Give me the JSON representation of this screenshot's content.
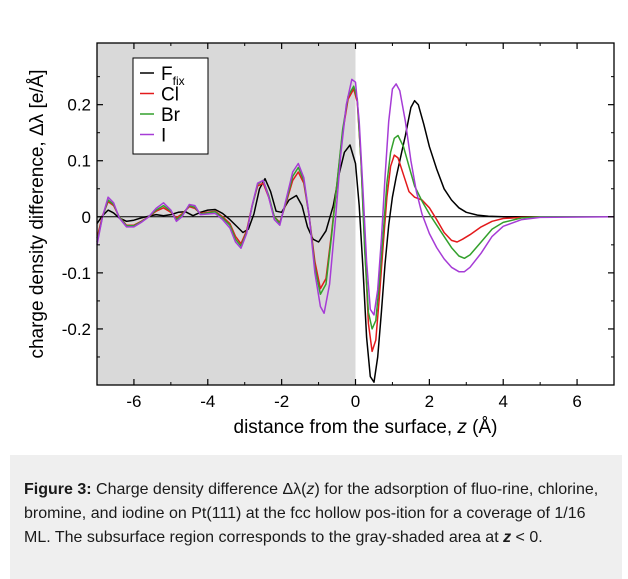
{
  "chart_data": {
    "type": "line",
    "xlabel_prefix": "distance from the surface, ",
    "xlabel_var": "z",
    "xlabel_unit": " (Å)",
    "ylabel": "charge density difference,  Δλ  [e/Å]",
    "xlim": [
      -7,
      7
    ],
    "ylim": [
      -0.3,
      0.31
    ],
    "xticks": [
      -6,
      -4,
      -2,
      0,
      2,
      4,
      6
    ],
    "yticks": [
      0.2,
      0.1,
      0,
      -0.1,
      -0.2
    ],
    "xtick_labels": [
      "-6",
      "-4",
      "-2",
      "0",
      "2",
      "4",
      "6"
    ],
    "ytick_labels": [
      "0.2",
      "0.1",
      "0",
      "-0.1",
      "-0.2"
    ],
    "shaded_region": [
      -7,
      0
    ],
    "shaded_color": "#d9d9d9",
    "zero_line": true,
    "grid": false,
    "legend_position": "top-left",
    "series": [
      {
        "name": "F",
        "subscript": "fix",
        "color": "#000000",
        "points": [
          [
            -7.0,
            -0.012
          ],
          [
            -6.85,
            0.002
          ],
          [
            -6.7,
            0.012
          ],
          [
            -6.55,
            0.007
          ],
          [
            -6.4,
            -0.002
          ],
          [
            -6.2,
            -0.008
          ],
          [
            -6.0,
            -0.006
          ],
          [
            -5.8,
            -0.002
          ],
          [
            -5.6,
            0.001
          ],
          [
            -5.4,
            0.004
          ],
          [
            -5.2,
            0.002
          ],
          [
            -5.0,
            0.004
          ],
          [
            -4.8,
            0.008
          ],
          [
            -4.6,
            0.009
          ],
          [
            -4.4,
            0.002
          ],
          [
            -4.2,
            0.008
          ],
          [
            -4.0,
            0.012
          ],
          [
            -3.8,
            0.013
          ],
          [
            -3.6,
            0.006
          ],
          [
            -3.4,
            -0.005
          ],
          [
            -3.2,
            -0.018
          ],
          [
            -3.05,
            -0.028
          ],
          [
            -2.9,
            -0.022
          ],
          [
            -2.75,
            0.005
          ],
          [
            -2.6,
            0.05
          ],
          [
            -2.45,
            0.068
          ],
          [
            -2.3,
            0.045
          ],
          [
            -2.15,
            0.01
          ],
          [
            -2.0,
            0.008
          ],
          [
            -1.8,
            0.03
          ],
          [
            -1.6,
            0.038
          ],
          [
            -1.45,
            0.02
          ],
          [
            -1.3,
            -0.018
          ],
          [
            -1.15,
            -0.04
          ],
          [
            -1.0,
            -0.045
          ],
          [
            -0.8,
            -0.025
          ],
          [
            -0.6,
            0.02
          ],
          [
            -0.45,
            0.075
          ],
          [
            -0.3,
            0.115
          ],
          [
            -0.15,
            0.128
          ],
          [
            0.0,
            0.095
          ],
          [
            0.1,
            0.02
          ],
          [
            0.2,
            -0.09
          ],
          [
            0.3,
            -0.215
          ],
          [
            0.4,
            -0.285
          ],
          [
            0.5,
            -0.295
          ],
          [
            0.6,
            -0.25
          ],
          [
            0.7,
            -0.17
          ],
          [
            0.8,
            -0.085
          ],
          [
            0.9,
            -0.015
          ],
          [
            1.0,
            0.035
          ],
          [
            1.1,
            0.07
          ],
          [
            1.2,
            0.1
          ],
          [
            1.35,
            0.145
          ],
          [
            1.5,
            0.195
          ],
          [
            1.6,
            0.207
          ],
          [
            1.7,
            0.2
          ],
          [
            1.85,
            0.165
          ],
          [
            2.0,
            0.125
          ],
          [
            2.2,
            0.085
          ],
          [
            2.4,
            0.05
          ],
          [
            2.6,
            0.03
          ],
          [
            2.8,
            0.016
          ],
          [
            3.0,
            0.008
          ],
          [
            3.3,
            0.003
          ],
          [
            3.6,
            0.001
          ],
          [
            4.0,
            0.0
          ],
          [
            5.0,
            0.0
          ],
          [
            7.0,
            0.0
          ]
        ]
      },
      {
        "name": "Cl",
        "color": "#e31a1c",
        "points": [
          [
            -7.0,
            -0.038
          ],
          [
            -6.85,
            0.002
          ],
          [
            -6.7,
            0.027
          ],
          [
            -6.55,
            0.02
          ],
          [
            -6.4,
            0.0
          ],
          [
            -6.2,
            -0.015
          ],
          [
            -6.0,
            -0.015
          ],
          [
            -5.8,
            -0.008
          ],
          [
            -5.6,
            0.0
          ],
          [
            -5.4,
            0.01
          ],
          [
            -5.2,
            0.016
          ],
          [
            -5.0,
            0.008
          ],
          [
            -4.85,
            -0.002
          ],
          [
            -4.7,
            0.005
          ],
          [
            -4.5,
            0.018
          ],
          [
            -4.35,
            0.015
          ],
          [
            -4.2,
            0.006
          ],
          [
            -4.0,
            0.008
          ],
          [
            -3.8,
            0.01
          ],
          [
            -3.6,
            0.0
          ],
          [
            -3.4,
            -0.012
          ],
          [
            -3.25,
            -0.035
          ],
          [
            -3.1,
            -0.048
          ],
          [
            -2.95,
            -0.025
          ],
          [
            -2.8,
            0.02
          ],
          [
            -2.65,
            0.055
          ],
          [
            -2.5,
            0.06
          ],
          [
            -2.35,
            0.035
          ],
          [
            -2.2,
            0.0
          ],
          [
            -2.05,
            -0.01
          ],
          [
            -1.9,
            0.02
          ],
          [
            -1.7,
            0.065
          ],
          [
            -1.55,
            0.08
          ],
          [
            -1.4,
            0.06
          ],
          [
            -1.25,
            0.0
          ],
          [
            -1.1,
            -0.08
          ],
          [
            -0.95,
            -0.128
          ],
          [
            -0.8,
            -0.11
          ],
          [
            -0.65,
            -0.03
          ],
          [
            -0.5,
            0.06
          ],
          [
            -0.35,
            0.15
          ],
          [
            -0.2,
            0.21
          ],
          [
            -0.05,
            0.228
          ],
          [
            0.05,
            0.205
          ],
          [
            0.15,
            0.1
          ],
          [
            0.25,
            -0.05
          ],
          [
            0.35,
            -0.19
          ],
          [
            0.45,
            -0.24
          ],
          [
            0.55,
            -0.22
          ],
          [
            0.65,
            -0.14
          ],
          [
            0.75,
            -0.05
          ],
          [
            0.85,
            0.035
          ],
          [
            0.95,
            0.09
          ],
          [
            1.05,
            0.11
          ],
          [
            1.15,
            0.105
          ],
          [
            1.3,
            0.075
          ],
          [
            1.45,
            0.045
          ],
          [
            1.6,
            0.035
          ],
          [
            1.8,
            0.03
          ],
          [
            2.0,
            0.016
          ],
          [
            2.2,
            -0.005
          ],
          [
            2.4,
            -0.028
          ],
          [
            2.6,
            -0.042
          ],
          [
            2.75,
            -0.045
          ],
          [
            2.9,
            -0.04
          ],
          [
            3.1,
            -0.032
          ],
          [
            3.4,
            -0.018
          ],
          [
            3.7,
            -0.008
          ],
          [
            4.0,
            -0.003
          ],
          [
            4.5,
            -0.001
          ],
          [
            5.0,
            0.0
          ],
          [
            7.0,
            0.0
          ]
        ]
      },
      {
        "name": "Br",
        "color": "#33a02c",
        "points": [
          [
            -7.0,
            -0.045
          ],
          [
            -6.85,
            0.0
          ],
          [
            -6.7,
            0.03
          ],
          [
            -6.55,
            0.022
          ],
          [
            -6.4,
            0.0
          ],
          [
            -6.2,
            -0.016
          ],
          [
            -6.0,
            -0.016
          ],
          [
            -5.8,
            -0.009
          ],
          [
            -5.6,
            0.0
          ],
          [
            -5.4,
            0.012
          ],
          [
            -5.2,
            0.02
          ],
          [
            -5.0,
            0.01
          ],
          [
            -4.85,
            -0.005
          ],
          [
            -4.7,
            0.003
          ],
          [
            -4.5,
            0.02
          ],
          [
            -4.35,
            0.017
          ],
          [
            -4.2,
            0.005
          ],
          [
            -4.0,
            0.007
          ],
          [
            -3.8,
            0.009
          ],
          [
            -3.6,
            -0.002
          ],
          [
            -3.4,
            -0.015
          ],
          [
            -3.25,
            -0.04
          ],
          [
            -3.1,
            -0.052
          ],
          [
            -2.95,
            -0.028
          ],
          [
            -2.8,
            0.018
          ],
          [
            -2.65,
            0.058
          ],
          [
            -2.5,
            0.065
          ],
          [
            -2.35,
            0.038
          ],
          [
            -2.2,
            0.0
          ],
          [
            -2.05,
            -0.012
          ],
          [
            -1.9,
            0.022
          ],
          [
            -1.7,
            0.072
          ],
          [
            -1.55,
            0.088
          ],
          [
            -1.4,
            0.065
          ],
          [
            -1.25,
            0.0
          ],
          [
            -1.1,
            -0.09
          ],
          [
            -0.95,
            -0.138
          ],
          [
            -0.8,
            -0.12
          ],
          [
            -0.65,
            -0.035
          ],
          [
            -0.5,
            0.06
          ],
          [
            -0.35,
            0.155
          ],
          [
            -0.2,
            0.215
          ],
          [
            -0.05,
            0.233
          ],
          [
            0.05,
            0.21
          ],
          [
            0.15,
            0.1
          ],
          [
            0.25,
            -0.06
          ],
          [
            0.35,
            -0.17
          ],
          [
            0.45,
            -0.2
          ],
          [
            0.55,
            -0.185
          ],
          [
            0.65,
            -0.115
          ],
          [
            0.75,
            -0.03
          ],
          [
            0.85,
            0.06
          ],
          [
            0.95,
            0.115
          ],
          [
            1.05,
            0.14
          ],
          [
            1.15,
            0.145
          ],
          [
            1.3,
            0.125
          ],
          [
            1.45,
            0.09
          ],
          [
            1.6,
            0.055
          ],
          [
            1.8,
            0.028
          ],
          [
            2.0,
            0.005
          ],
          [
            2.2,
            -0.015
          ],
          [
            2.4,
            -0.035
          ],
          [
            2.6,
            -0.055
          ],
          [
            2.8,
            -0.07
          ],
          [
            2.95,
            -0.074
          ],
          [
            3.1,
            -0.068
          ],
          [
            3.4,
            -0.045
          ],
          [
            3.7,
            -0.022
          ],
          [
            4.0,
            -0.01
          ],
          [
            4.5,
            -0.002
          ],
          [
            5.0,
            0.0
          ],
          [
            7.0,
            0.0
          ]
        ]
      },
      {
        "name": "I",
        "color": "#a63cd6",
        "points": [
          [
            -7.0,
            -0.05
          ],
          [
            -6.85,
            0.0
          ],
          [
            -6.7,
            0.035
          ],
          [
            -6.55,
            0.025
          ],
          [
            -6.4,
            -0.002
          ],
          [
            -6.2,
            -0.018
          ],
          [
            -6.0,
            -0.018
          ],
          [
            -5.8,
            -0.01
          ],
          [
            -5.6,
            0.0
          ],
          [
            -5.4,
            0.015
          ],
          [
            -5.2,
            0.025
          ],
          [
            -5.0,
            0.012
          ],
          [
            -4.85,
            -0.008
          ],
          [
            -4.7,
            0.0
          ],
          [
            -4.5,
            0.022
          ],
          [
            -4.35,
            0.02
          ],
          [
            -4.2,
            0.004
          ],
          [
            -4.0,
            0.005
          ],
          [
            -3.8,
            0.006
          ],
          [
            -3.6,
            -0.005
          ],
          [
            -3.4,
            -0.02
          ],
          [
            -3.25,
            -0.045
          ],
          [
            -3.1,
            -0.056
          ],
          [
            -2.95,
            -0.03
          ],
          [
            -2.8,
            0.02
          ],
          [
            -2.65,
            0.06
          ],
          [
            -2.5,
            0.065
          ],
          [
            -2.35,
            0.035
          ],
          [
            -2.2,
            -0.005
          ],
          [
            -2.05,
            -0.015
          ],
          [
            -1.9,
            0.025
          ],
          [
            -1.7,
            0.08
          ],
          [
            -1.55,
            0.095
          ],
          [
            -1.4,
            0.07
          ],
          [
            -1.25,
            0.0
          ],
          [
            -1.1,
            -0.1
          ],
          [
            -0.95,
            -0.16
          ],
          [
            -0.85,
            -0.172
          ],
          [
            -0.7,
            -0.12
          ],
          [
            -0.55,
            -0.01
          ],
          [
            -0.4,
            0.11
          ],
          [
            -0.25,
            0.2
          ],
          [
            -0.1,
            0.245
          ],
          [
            0.0,
            0.24
          ],
          [
            0.1,
            0.17
          ],
          [
            0.2,
            0.05
          ],
          [
            0.3,
            -0.08
          ],
          [
            0.4,
            -0.165
          ],
          [
            0.5,
            -0.175
          ],
          [
            0.6,
            -0.13
          ],
          [
            0.7,
            -0.04
          ],
          [
            0.8,
            0.07
          ],
          [
            0.9,
            0.17
          ],
          [
            1.0,
            0.228
          ],
          [
            1.1,
            0.237
          ],
          [
            1.2,
            0.225
          ],
          [
            1.35,
            0.17
          ],
          [
            1.5,
            0.1
          ],
          [
            1.65,
            0.045
          ],
          [
            1.8,
            0.005
          ],
          [
            2.0,
            -0.03
          ],
          [
            2.2,
            -0.055
          ],
          [
            2.4,
            -0.075
          ],
          [
            2.6,
            -0.09
          ],
          [
            2.8,
            -0.098
          ],
          [
            2.95,
            -0.098
          ],
          [
            3.1,
            -0.09
          ],
          [
            3.4,
            -0.065
          ],
          [
            3.7,
            -0.035
          ],
          [
            4.0,
            -0.017
          ],
          [
            4.5,
            -0.005
          ],
          [
            5.0,
            -0.001
          ],
          [
            7.0,
            0.0
          ]
        ]
      }
    ]
  },
  "caption": {
    "label": "Figure 3:",
    "part1": " Charge density difference Δλ(",
    "var1": "z",
    "part2": ") for the adsorption of fluo-rine, chlorine, bromine, and iodine on Pt(111) at the fcc hollow pos-ition for a coverage of 1/16 ML. The subsurface region corresponds to the gray-shaded area at ",
    "var2": "z",
    "part3": " < 0."
  }
}
